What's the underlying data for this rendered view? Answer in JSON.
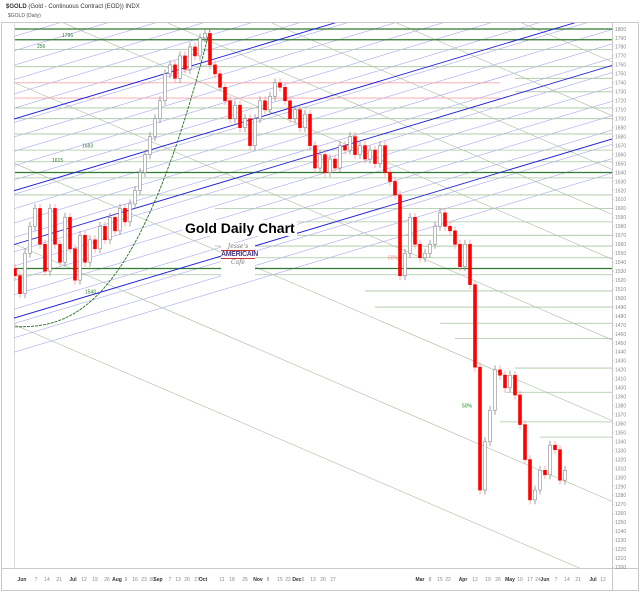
{
  "header": {
    "symbol": "$GOLD",
    "description": "(Gold - Continuous Contract (EOD)) INDX",
    "subtitle": "$GOLD (Daily)"
  },
  "annotation_title": "Gold Daily Chart",
  "logo": {
    "line1": "Jesse's",
    "line2": "AMERICAIN",
    "line3": "Café"
  },
  "colors": {
    "up_body": "#ffffff",
    "up_outline": "#8c8c8c",
    "down_body": "#ff0000",
    "down_wick": "#ff9a9a",
    "level_dark": "#2f7a2f",
    "level": "#a9c4a0",
    "level_pink": "#f4a4a4",
    "channel": "#a8a8f0",
    "channel_dark": "#1a1ae0",
    "fan": "#a9bda0",
    "parabola": "#1f6f1f"
  },
  "chart_data": {
    "type": "candlestick",
    "title": "Gold Daily Chart",
    "ylim": [
      1200,
      1800
    ],
    "y_ticks": [
      1800,
      1790,
      1780,
      1770,
      1760,
      1750,
      1740,
      1730,
      1720,
      1710,
      1700,
      1690,
      1680,
      1670,
      1660,
      1650,
      1640,
      1630,
      1620,
      1610,
      1600,
      1590,
      1580,
      1570,
      1560,
      1550,
      1540,
      1530,
      1520,
      1510,
      1500,
      1490,
      1480,
      1470,
      1460,
      1450,
      1440,
      1430,
      1420,
      1410,
      1400,
      1390,
      1380,
      1370,
      1360,
      1350,
      1340,
      1330,
      1320,
      1310,
      1300,
      1290,
      1280,
      1270,
      1260,
      1250,
      1240,
      1230,
      1220,
      1210,
      1200
    ],
    "x_ticks": [
      {
        "label": "Jun",
        "bar": 1.4,
        "bold": true
      },
      {
        "label": "7",
        "bar": 4.2
      },
      {
        "label": "14",
        "bar": 6.4
      },
      {
        "label": "21",
        "bar": 8.8
      },
      {
        "label": "Jul",
        "bar": 11.6,
        "bold": true
      },
      {
        "label": "12",
        "bar": 13.8
      },
      {
        "label": "19",
        "bar": 16
      },
      {
        "label": "26",
        "bar": 18.4
      },
      {
        "label": "Aug",
        "bar": 20.4,
        "bold": true
      },
      {
        "label": "9",
        "bar": 22.2
      },
      {
        "label": "16",
        "bar": 24
      },
      {
        "label": "23",
        "bar": 25.8
      },
      {
        "label": "30",
        "bar": 27.4
      },
      {
        "label": "Sep",
        "bar": 28.6,
        "bold": true
      },
      {
        "label": "7",
        "bar": 31
      },
      {
        "label": "13",
        "bar": 32.6
      },
      {
        "label": "20",
        "bar": 34.4
      },
      {
        "label": "27",
        "bar": 36.4
      },
      {
        "label": "Oct",
        "bar": 37.6,
        "bold": true
      },
      {
        "label": "11",
        "bar": 41.4
      },
      {
        "label": "18",
        "bar": 43.4
      },
      {
        "label": "25",
        "bar": 46
      },
      {
        "label": "Nov",
        "bar": 48.6,
        "bold": true
      },
      {
        "label": "8",
        "bar": 50.6
      },
      {
        "label": "15",
        "bar": 53
      },
      {
        "label": "22",
        "bar": 54.6
      },
      {
        "label": "Dec",
        "bar": 56.4,
        "bold": true
      },
      {
        "label": "6",
        "bar": 57.6
      },
      {
        "label": "13",
        "bar": 59.6
      },
      {
        "label": "20",
        "bar": 61.6
      },
      {
        "label": "27",
        "bar": 63.6
      },
      {
        "label": "Mar",
        "bar": 81,
        "bold": true
      },
      {
        "label": "8",
        "bar": 83
      },
      {
        "label": "15",
        "bar": 85
      },
      {
        "label": "22",
        "bar": 86.6
      },
      {
        "label": "Apr",
        "bar": 89.6,
        "bold": true
      },
      {
        "label": "12",
        "bar": 92
      },
      {
        "label": "19",
        "bar": 94.6
      },
      {
        "label": "26",
        "bar": 96.6
      },
      {
        "label": "May",
        "bar": 99,
        "bold": true
      },
      {
        "label": "10",
        "bar": 101
      },
      {
        "label": "17",
        "bar": 103
      },
      {
        "label": "24",
        "bar": 104.6
      },
      {
        "label": "Jun",
        "bar": 106,
        "bold": true
      },
      {
        "label": "7",
        "bar": 108.2
      },
      {
        "label": "14",
        "bar": 110.4
      },
      {
        "label": "21",
        "bar": 112.6
      },
      {
        "label": "Jul",
        "bar": 115.6,
        "bold": true
      },
      {
        "label": "12",
        "bar": 117.6
      }
    ],
    "close": [
      1525,
      1505,
      1550,
      1580,
      1600,
      1560,
      1530,
      1600,
      1560,
      1540,
      1590,
      1555,
      1520,
      1570,
      1540,
      1565,
      1555,
      1580,
      1565,
      1590,
      1575,
      1600,
      1585,
      1605,
      1620,
      1640,
      1660,
      1680,
      1700,
      1720,
      1750,
      1760,
      1745,
      1770,
      1755,
      1780,
      1770,
      1790,
      1795,
      1760,
      1750,
      1735,
      1720,
      1700,
      1715,
      1690,
      1700,
      1670,
      1700,
      1720,
      1710,
      1725,
      1740,
      1735,
      1720,
      1700,
      1710,
      1690,
      1705,
      1670,
      1645,
      1660,
      1640,
      1655,
      1645,
      1670,
      1665,
      1680,
      1660,
      1670,
      1655,
      1665,
      1650,
      1670,
      1640,
      1630,
      1615,
      1525,
      1550,
      1590,
      1560,
      1545,
      1550,
      1560,
      1580,
      1595,
      1580,
      1575,
      1560,
      1535,
      1560,
      1515,
      1423,
      1286,
      1340,
      1375,
      1420,
      1414,
      1400,
      1414,
      1392,
      1359,
      1320,
      1275,
      1286,
      1308,
      1303,
      1336,
      1331,
      1297,
      1308
    ],
    "levels": [
      {
        "price": 1800,
        "from": 0,
        "style": "dark"
      },
      {
        "price": 1788,
        "from": 0,
        "style": "dark"
      },
      {
        "price": 1777,
        "from": 0,
        "style": "normal"
      },
      {
        "price": 1758,
        "from": 0,
        "style": "normal"
      },
      {
        "price": 1740,
        "from": 0,
        "to": 97,
        "style": "pink"
      },
      {
        "price": 1723,
        "from": 0,
        "to": 97,
        "style": "pink"
      },
      {
        "price": 1745,
        "from": 100,
        "style": "normal"
      },
      {
        "price": 1730,
        "from": 100,
        "style": "normal"
      },
      {
        "price": 1712,
        "from": 0,
        "style": "normal"
      },
      {
        "price": 1700,
        "from": 0,
        "style": "normal"
      },
      {
        "price": 1683,
        "from": 0,
        "style": "normal"
      },
      {
        "price": 1665,
        "from": 0,
        "style": "normal"
      },
      {
        "price": 1652,
        "from": 0,
        "style": "normal"
      },
      {
        "price": 1640,
        "from": 0,
        "style": "dark"
      },
      {
        "price": 1634,
        "from": 0,
        "style": "normal"
      },
      {
        "price": 1615,
        "from": 0,
        "style": "normal"
      },
      {
        "price": 1600,
        "from": 40,
        "style": "normal"
      },
      {
        "price": 1585,
        "from": 40,
        "style": "normal"
      },
      {
        "price": 1570,
        "from": 40,
        "style": "normal"
      },
      {
        "price": 1558,
        "from": 40,
        "style": "normal"
      },
      {
        "price": 1545,
        "from": 40,
        "style": "normal"
      },
      {
        "price": 1533,
        "from": 0,
        "style": "dark"
      },
      {
        "price": 1526,
        "from": 0,
        "style": "normal"
      },
      {
        "price": 1508,
        "from": 70,
        "style": "normal"
      },
      {
        "price": 1490,
        "from": 72,
        "style": "normal"
      },
      {
        "price": 1472,
        "from": 85,
        "style": "normal"
      },
      {
        "price": 1455,
        "from": 88,
        "style": "normal"
      },
      {
        "price": 1422,
        "from": 100,
        "style": "normal"
      },
      {
        "price": 1395,
        "from": 98,
        "style": "normal"
      },
      {
        "price": 1362,
        "from": 97,
        "style": "normal"
      },
      {
        "price": 1345,
        "from": 105,
        "style": "normal"
      }
    ],
    "channels": {
      "slope": 1.67,
      "bases": [
        1440,
        1456,
        1472,
        1488,
        1504,
        1520,
        1536,
        1552,
        1568,
        1584,
        1600,
        1616,
        1632,
        1648,
        1664,
        1680,
        1696,
        1712,
        1728,
        1744,
        1760,
        1776,
        1792
      ],
      "dark_bases": [
        1478,
        1560,
        1620,
        1700
      ]
    },
    "fans": {
      "slope": -2.4,
      "bases": [
        1470,
        1560,
        1650,
        1740,
        1830,
        1880,
        1930,
        1990,
        2050
      ]
    },
    "parabola": {
      "from_bar": 0,
      "from_price": 1468,
      "to_bar": 39,
      "to_price": 1800
    },
    "labels": [
      {
        "text": "1796",
        "bar": 9.4,
        "price": 1791,
        "color": "#2f7a2f"
      },
      {
        "text": "256",
        "bar": 4.4,
        "price": 1779,
        "color": "#2f7a2f"
      },
      {
        "text": "1683",
        "bar": 13.4,
        "price": 1668,
        "color": "#2f7a2f"
      },
      {
        "text": "1615",
        "bar": 7.4,
        "price": 1652,
        "color": "#2f7a2f"
      },
      {
        "text": "1540",
        "bar": 14,
        "price": 1505,
        "color": "#2f7a2f"
      },
      {
        "text": "50%",
        "bar": 74.6,
        "price": 1543,
        "color": "#f08080"
      },
      {
        "text": "50%",
        "bar": 89.4,
        "price": 1378,
        "color": "#1a8a1a"
      }
    ]
  }
}
